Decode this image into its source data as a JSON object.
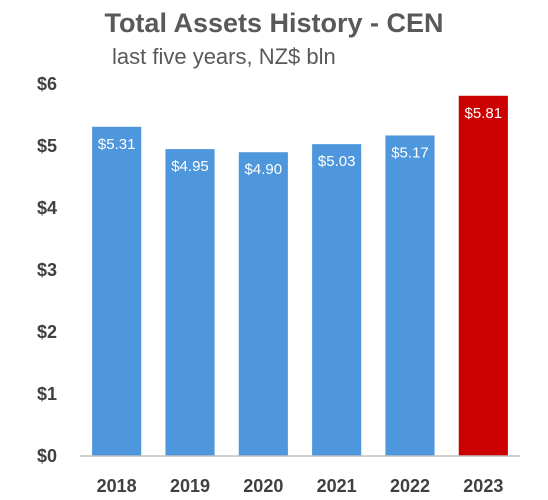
{
  "chart_data": {
    "type": "bar",
    "title": "Total Assets History - CEN",
    "subtitle": "last five years, NZ$ bln",
    "categories": [
      "2018",
      "2019",
      "2020",
      "2021",
      "2022",
      "2023"
    ],
    "values": [
      5.31,
      4.95,
      4.9,
      5.03,
      5.17,
      5.81
    ],
    "data_labels": [
      "$5.31",
      "$4.95",
      "$4.90",
      "$5.03",
      "$5.17",
      "$5.81"
    ],
    "y_ticks": [
      0,
      1,
      2,
      3,
      4,
      5,
      6
    ],
    "y_tick_labels": [
      "$0",
      "$1",
      "$2",
      "$3",
      "$4",
      "$5",
      "$6"
    ],
    "ylim": [
      0,
      6
    ],
    "grid": false,
    "legend": "none",
    "colors": {
      "default_bar": "#4e97dc",
      "highlight_bar": "#cc0000",
      "axis_line": "#bfbfbf",
      "text": "#404040"
    },
    "highlight_category": "2023"
  }
}
